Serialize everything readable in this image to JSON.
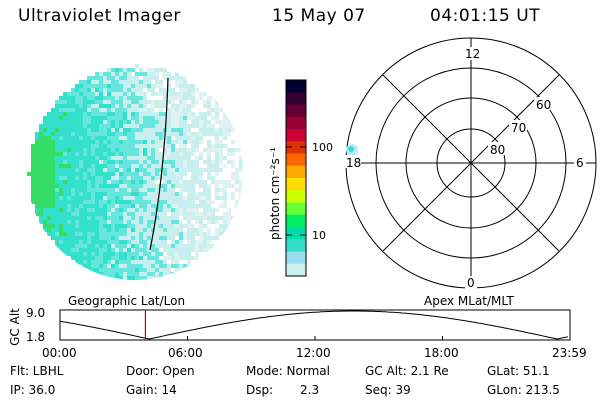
{
  "header": {
    "instrument": "Ultraviolet Imager",
    "date": "15 May 07",
    "time": "04:01:15 UT"
  },
  "colorbar": {
    "label": "photon cm⁻²s⁻¹",
    "ticks": [
      "100",
      "10"
    ],
    "colors": [
      "#000033",
      "#330033",
      "#660033",
      "#990033",
      "#cc0033",
      "#dd3300",
      "#ff6600",
      "#ffaa00",
      "#ffdd00",
      "#ccff00",
      "#66ff33",
      "#00ee66",
      "#00ddaa",
      "#33ddcc",
      "#99ddee",
      "#ccf0f0"
    ]
  },
  "polar_plot": {
    "top_label": "12",
    "bottom_label": "0",
    "left_label": "18",
    "right_label": "6",
    "ring_labels": [
      "60",
      "70",
      "80"
    ]
  },
  "timeline": {
    "left_title": "Geographic Lat/Lon",
    "right_title": "Apex MLat/MLT",
    "y_axis_label": "GC Alt",
    "y_max": "9.0",
    "y_min": "1.8",
    "x_ticks": [
      "00:00",
      "06:00",
      "12:00",
      "18:00",
      "23:59"
    ],
    "marker_time_hours": 4.02,
    "marker_color": "#cc0000"
  },
  "info": {
    "filter": "Flt: LBHL",
    "door": "Door: Open",
    "mode": "Mode: Normal",
    "gc_alt": "GC Alt: 2.1 Re",
    "glat": "GLat:  51.1",
    "ip": "IP: 36.0",
    "gain": "Gain: 14",
    "dsp_label": "Dsp:",
    "dsp_value": "2.3",
    "seq": "Seq: 39",
    "glon": "GLon: 213.5"
  },
  "image_colors": {
    "bright": "#33e0cc",
    "medium": "#66e6dd",
    "faint": "#c8eeee",
    "peak": "#33dd66"
  }
}
